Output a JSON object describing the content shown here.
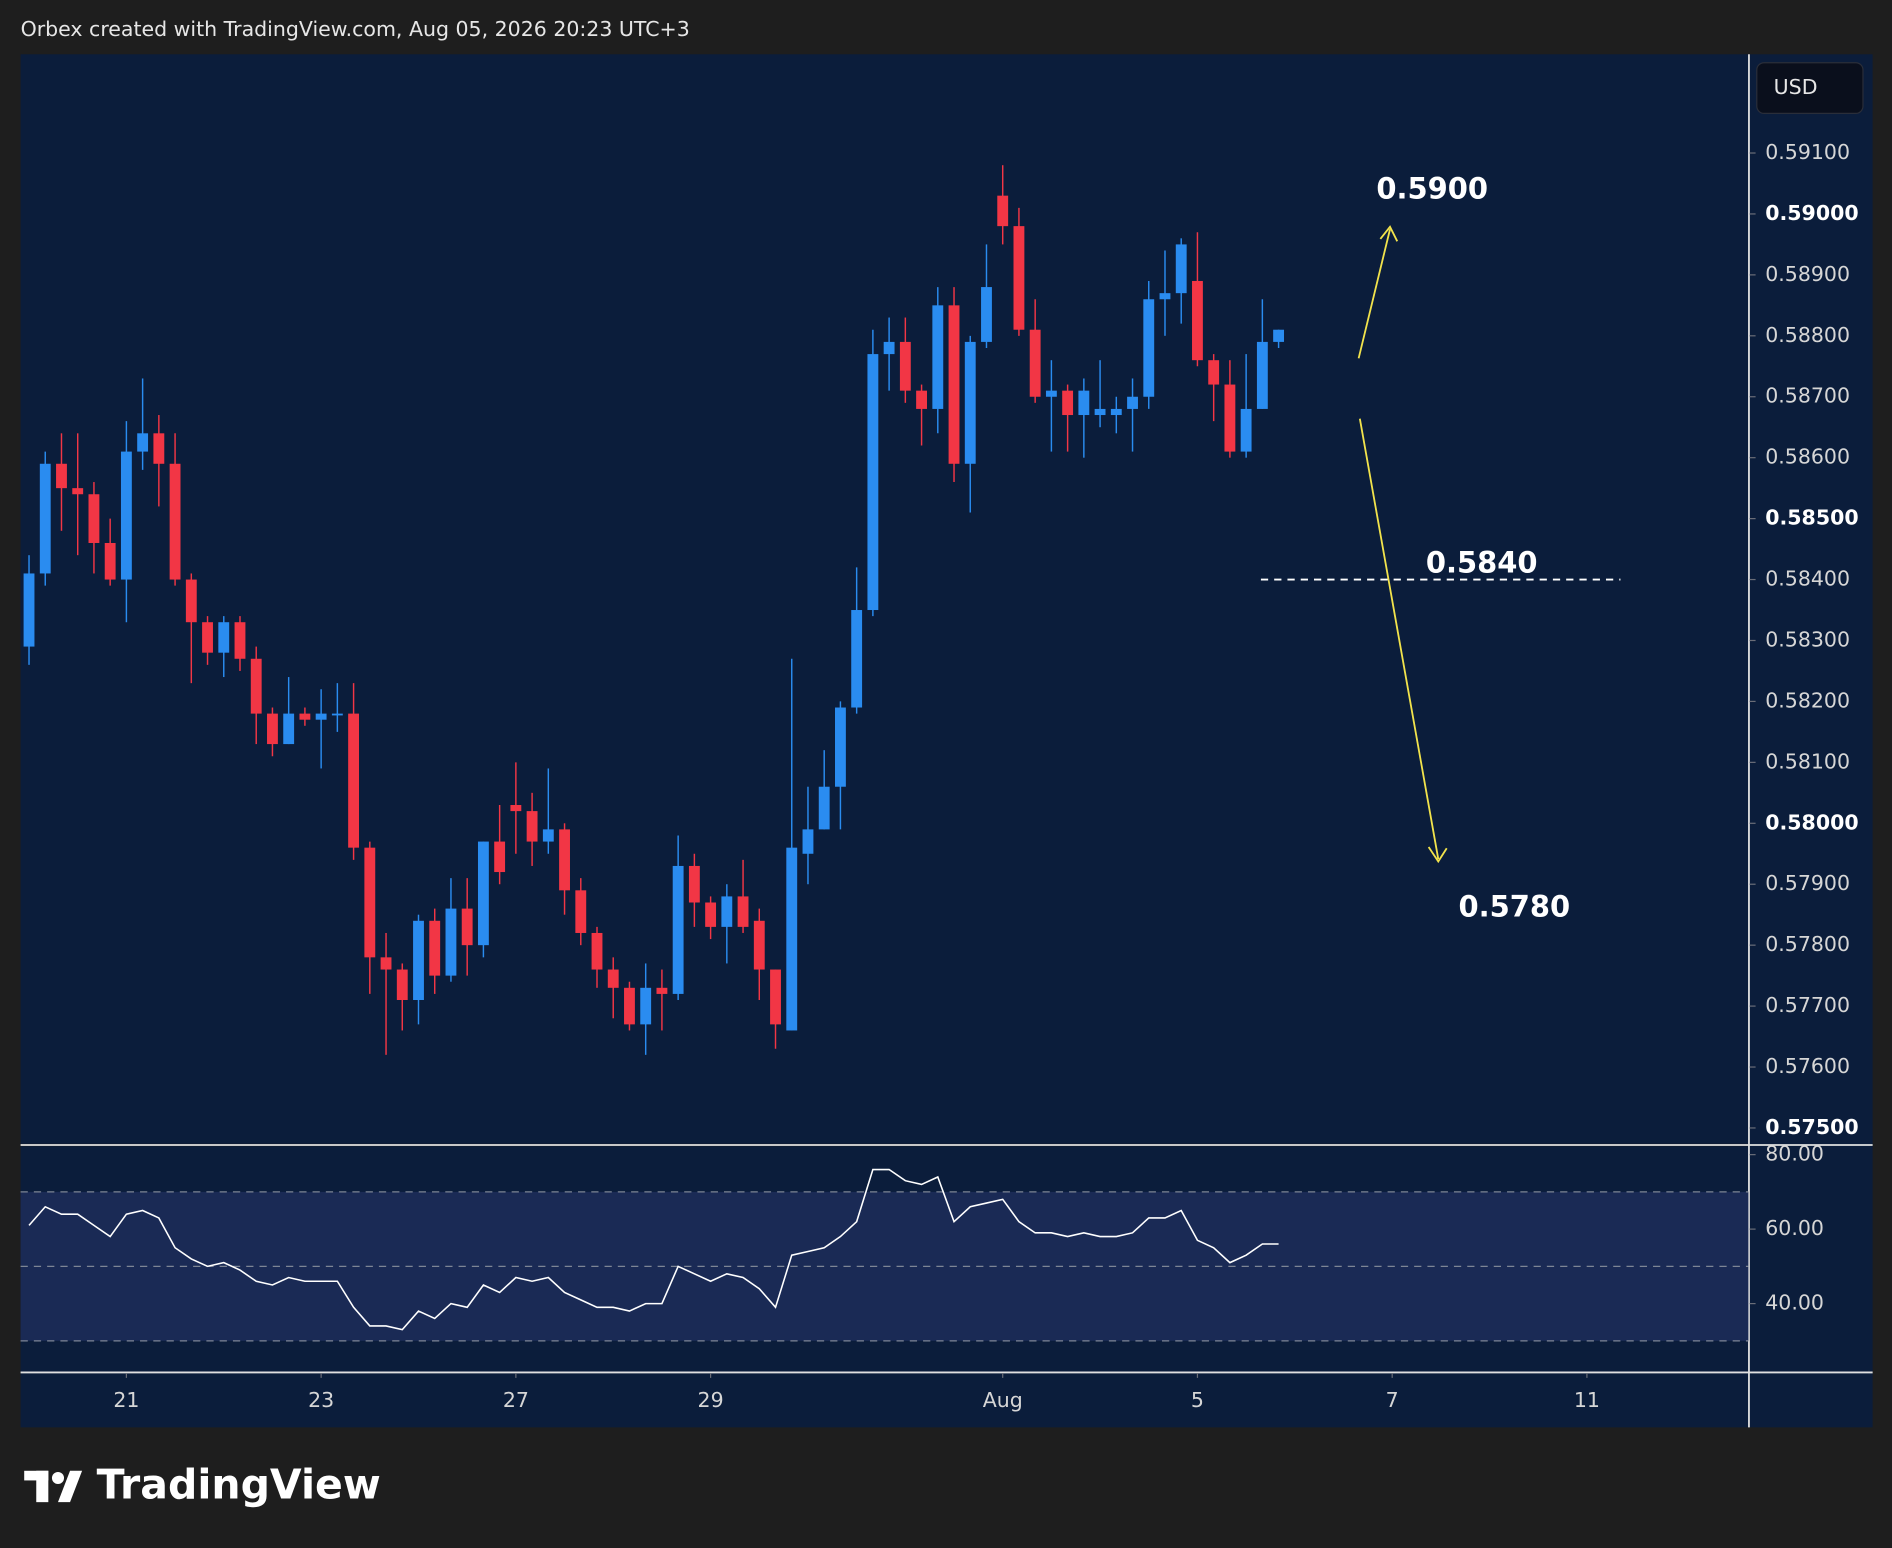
{
  "header": {
    "text": "Orbex created with TradingView.com, Aug 05, 2026 20:23 UTC+3"
  },
  "currency_button": "USD",
  "logo": "TradingView",
  "chart_data": {
    "type": "candlestick",
    "up_color": "#2a8cf0",
    "down_color": "#f23645",
    "open": [
      0.5829,
      0.5841,
      0.5859,
      0.5855,
      0.5854,
      0.5846,
      0.584,
      0.5861,
      0.5864,
      0.5859,
      0.584,
      0.5833,
      0.5828,
      0.5833,
      0.5827,
      0.5818,
      0.5813,
      0.5818,
      0.5817,
      0.5818,
      0.5818,
      0.5796,
      0.5778,
      0.5776,
      0.5771,
      0.5784,
      0.5775,
      0.5786,
      0.578,
      0.5797,
      0.5803,
      0.5802,
      0.5797,
      0.5799,
      0.5789,
      0.5782,
      0.5776,
      0.5773,
      0.5767,
      0.5773,
      0.5772,
      0.5793,
      0.5787,
      0.5783,
      0.5788,
      0.5784,
      0.5776,
      0.5766,
      0.5795,
      0.5799,
      0.5806,
      0.5819,
      0.5835,
      0.5877,
      0.5879,
      0.5871,
      0.5868,
      0.5885,
      0.5859,
      0.5879,
      0.5903,
      0.5898,
      0.5881,
      0.587,
      0.5871,
      0.5867,
      0.5867,
      0.5867,
      0.5868,
      0.587,
      0.5886,
      0.5887,
      0.5889,
      0.5876,
      0.5872,
      0.5861,
      0.5868,
      0.5879
    ],
    "high": [
      0.5844,
      0.5861,
      0.5864,
      0.5864,
      0.5856,
      0.585,
      0.5866,
      0.5873,
      0.5867,
      0.5864,
      0.5841,
      0.5834,
      0.5834,
      0.5834,
      0.5829,
      0.5819,
      0.5824,
      0.5819,
      0.5822,
      0.5823,
      0.5823,
      0.5797,
      0.5782,
      0.5777,
      0.5785,
      0.5786,
      0.5791,
      0.5791,
      0.5797,
      0.5803,
      0.581,
      0.5805,
      0.5809,
      0.58,
      0.5791,
      0.5783,
      0.5778,
      0.5774,
      0.5777,
      0.5776,
      0.5798,
      0.5795,
      0.5788,
      0.579,
      0.5794,
      0.5786,
      0.5776,
      0.5827,
      0.5806,
      0.5812,
      0.582,
      0.5842,
      0.5881,
      0.5883,
      0.5883,
      0.5872,
      0.5888,
      0.5888,
      0.588,
      0.5895,
      0.5908,
      0.5901,
      0.5886,
      0.5876,
      0.5872,
      0.5873,
      0.5876,
      0.587,
      0.5873,
      0.5889,
      0.5894,
      0.5896,
      0.5897,
      0.5877,
      0.5876,
      0.5877,
      0.5886,
      0.5881
    ],
    "low": [
      0.5826,
      0.5839,
      0.5848,
      0.5844,
      0.5841,
      0.5839,
      0.5833,
      0.5858,
      0.5852,
      0.5839,
      0.5823,
      0.5826,
      0.5824,
      0.5825,
      0.5813,
      0.5811,
      0.5813,
      0.5816,
      0.5809,
      0.5815,
      0.5794,
      0.5772,
      0.5762,
      0.5766,
      0.5767,
      0.5772,
      0.5774,
      0.5775,
      0.5778,
      0.579,
      0.5795,
      0.5793,
      0.5795,
      0.5785,
      0.578,
      0.5773,
      0.5768,
      0.5766,
      0.5762,
      0.5766,
      0.5771,
      0.5783,
      0.5781,
      0.5777,
      0.5782,
      0.5771,
      0.5763,
      0.5766,
      0.579,
      0.5799,
      0.5799,
      0.5818,
      0.5834,
      0.5871,
      0.5869,
      0.5862,
      0.5864,
      0.5856,
      0.5851,
      0.5878,
      0.5895,
      0.588,
      0.5869,
      0.5861,
      0.5861,
      0.586,
      0.5865,
      0.5864,
      0.5861,
      0.5868,
      0.588,
      0.5882,
      0.5875,
      0.5866,
      0.586,
      0.586,
      0.5868,
      0.5878
    ],
    "close": [
      0.5841,
      0.5859,
      0.5855,
      0.5854,
      0.5846,
      0.584,
      0.5861,
      0.5864,
      0.5859,
      0.584,
      0.5833,
      0.5828,
      0.5833,
      0.5827,
      0.5818,
      0.5813,
      0.5818,
      0.5817,
      0.5818,
      0.5818,
      0.5796,
      0.5778,
      0.5776,
      0.5771,
      0.5784,
      0.5775,
      0.5786,
      0.578,
      0.5797,
      0.5792,
      0.5802,
      0.5797,
      0.5799,
      0.5789,
      0.5782,
      0.5776,
      0.5773,
      0.5767,
      0.5773,
      0.5772,
      0.5793,
      0.5787,
      0.5783,
      0.5788,
      0.5783,
      0.5776,
      0.5767,
      0.5796,
      0.5799,
      0.5806,
      0.5819,
      0.5835,
      0.5877,
      0.5879,
      0.5871,
      0.5868,
      0.5885,
      0.5859,
      0.5879,
      0.5888,
      0.5898,
      0.5881,
      0.587,
      0.5871,
      0.5867,
      0.5871,
      0.5868,
      0.5868,
      0.587,
      0.5886,
      0.5887,
      0.5895,
      0.5876,
      0.5872,
      0.5861,
      0.5868,
      0.5879,
      0.5881
    ],
    "ylim": [
      0.57474,
      0.59262
    ],
    "yticks": [
      {
        "value": 0.591,
        "label": "0.59100"
      },
      {
        "value": 0.59,
        "label": "0.59000"
      },
      {
        "value": 0.589,
        "label": "0.58900"
      },
      {
        "value": 0.588,
        "label": "0.58800"
      },
      {
        "value": 0.587,
        "label": "0.58700"
      },
      {
        "value": 0.586,
        "label": "0.58600"
      },
      {
        "value": 0.585,
        "label": "0.58500"
      },
      {
        "value": 0.584,
        "label": "0.58400"
      },
      {
        "value": 0.583,
        "label": "0.58300"
      },
      {
        "value": 0.582,
        "label": "0.58200"
      },
      {
        "value": 0.581,
        "label": "0.58100"
      },
      {
        "value": 0.58,
        "label": "0.58000"
      },
      {
        "value": 0.579,
        "label": "0.57900"
      },
      {
        "value": 0.578,
        "label": "0.57800"
      },
      {
        "value": 0.577,
        "label": "0.57700"
      },
      {
        "value": 0.576,
        "label": "0.57600"
      },
      {
        "value": 0.575,
        "label": "0.57500"
      }
    ],
    "xticks": [
      {
        "value": 6,
        "label": "21"
      },
      {
        "value": 18,
        "label": "23"
      },
      {
        "value": 30,
        "label": "27"
      },
      {
        "value": 42,
        "label": "29"
      },
      {
        "value": 60,
        "label": "Aug"
      },
      {
        "value": 72,
        "label": "5"
      },
      {
        "value": 84,
        "label": "7"
      },
      {
        "value": 96,
        "label": "11"
      }
    ],
    "annotations": [
      {
        "text": "0.5900"
      },
      {
        "text": "0.5840",
        "level": 0.584
      },
      {
        "text": "0.5780"
      }
    ],
    "rsi": {
      "color": "#ffffff",
      "values": [
        61,
        66,
        64,
        64,
        61,
        58,
        64,
        65,
        63,
        55,
        52,
        50,
        51,
        49,
        46,
        45,
        47,
        46,
        46,
        46,
        39,
        34,
        34,
        33,
        38,
        36,
        40,
        39,
        45,
        43,
        47,
        46,
        47,
        43,
        41,
        39,
        39,
        38,
        40,
        40,
        50,
        48,
        46,
        48,
        47,
        44,
        39,
        53,
        54,
        55,
        58,
        62,
        76,
        76,
        73,
        72,
        74,
        62,
        66,
        67,
        68,
        62,
        59,
        59,
        58,
        59,
        58,
        58,
        59,
        63,
        63,
        65,
        57,
        55,
        51,
        53,
        56,
        56
      ],
      "ylim": [
        22,
        82
      ],
      "yticks": [
        {
          "value": 80,
          "label": "80.00"
        },
        {
          "value": 60,
          "label": "60.00"
        },
        {
          "value": 40,
          "label": "40.00"
        }
      ],
      "levels": [
        70,
        50,
        30
      ]
    }
  }
}
